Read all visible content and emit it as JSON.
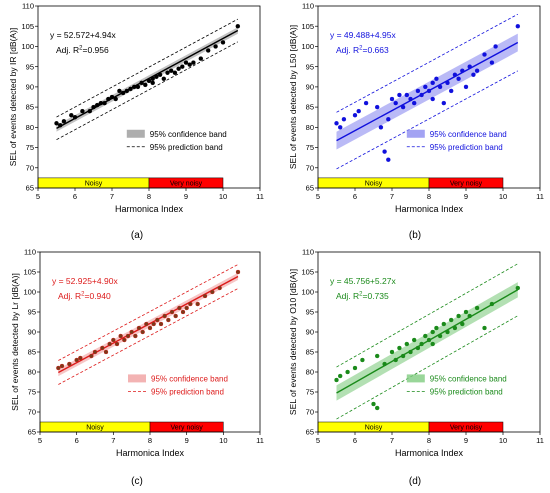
{
  "chart_data": [
    {
      "type": "scatter",
      "panel_label": "(a)",
      "xlabel": "Harmonica Index",
      "ylabel": "SEL of events detected by IR [dB(A)]",
      "xlim": [
        5,
        11
      ],
      "ylim": [
        65,
        110
      ],
      "xticks": [
        5,
        6,
        7,
        8,
        9,
        10,
        11
      ],
      "yticks": [
        65,
        70,
        75,
        80,
        85,
        90,
        95,
        100,
        105,
        110
      ],
      "color": "#000000",
      "band_color": "#9a9a9a",
      "equation": "y = 52.572+4.94x",
      "r2_label": "Adj. R",
      "r2_sup": "2",
      "r2_value": "=0.956",
      "fit": {
        "intercept": 52.572,
        "slope": 4.94,
        "x_range": [
          5.5,
          10.4
        ]
      },
      "conf_halfwidth": 0.8,
      "pred_halfwidth": 2.8,
      "legend": {
        "position": "bottom-right",
        "confidence": "95% confidence band",
        "prediction": "95% prediction band"
      },
      "zones": [
        {
          "label": "Noisy",
          "from": 5,
          "to": 8,
          "color": "#ffff00"
        },
        {
          "label": "Very noisy",
          "from": 8,
          "to": 10,
          "color": "#ff0000"
        }
      ],
      "points": [
        [
          5.5,
          81
        ],
        [
          5.6,
          80.5
        ],
        [
          5.7,
          81.5
        ],
        [
          5.9,
          83
        ],
        [
          6.0,
          82.5
        ],
        [
          6.2,
          84
        ],
        [
          6.4,
          84
        ],
        [
          6.5,
          85
        ],
        [
          6.6,
          85.5
        ],
        [
          6.7,
          86
        ],
        [
          6.8,
          86
        ],
        [
          6.9,
          87
        ],
        [
          7.0,
          87.5
        ],
        [
          7.1,
          87
        ],
        [
          7.2,
          89
        ],
        [
          7.3,
          88.5
        ],
        [
          7.4,
          89
        ],
        [
          7.5,
          89.5
        ],
        [
          7.6,
          90
        ],
        [
          7.7,
          90
        ],
        [
          7.8,
          91
        ],
        [
          7.9,
          90.5
        ],
        [
          8.0,
          91.5
        ],
        [
          8.1,
          92
        ],
        [
          8.1,
          91
        ],
        [
          8.2,
          92.5
        ],
        [
          8.3,
          93
        ],
        [
          8.4,
          92
        ],
        [
          8.5,
          93.5
        ],
        [
          8.6,
          94
        ],
        [
          8.7,
          93.5
        ],
        [
          8.8,
          94.5
        ],
        [
          8.9,
          95
        ],
        [
          9.0,
          96
        ],
        [
          9.1,
          95.5
        ],
        [
          9.2,
          96
        ],
        [
          9.4,
          97
        ],
        [
          9.6,
          99
        ],
        [
          9.8,
          100
        ],
        [
          10.0,
          101
        ],
        [
          10.4,
          105
        ]
      ]
    },
    {
      "type": "scatter",
      "panel_label": "(b)",
      "xlabel": "Harmonica Index",
      "ylabel": "SEL of events detected by L50 [dB(A)]",
      "xlim": [
        5,
        11
      ],
      "ylim": [
        65,
        110
      ],
      "xticks": [
        5,
        6,
        7,
        8,
        9,
        10,
        11
      ],
      "yticks": [
        65,
        70,
        75,
        80,
        85,
        90,
        95,
        100,
        105,
        110
      ],
      "color": "#1010dd",
      "band_color": "#8c8cf0",
      "equation": "y = 49.488+4.95x",
      "r2_label": "Adj. R",
      "r2_sup": "2",
      "r2_value": "=0.663",
      "fit": {
        "intercept": 49.488,
        "slope": 4.95,
        "x_range": [
          5.5,
          10.4
        ]
      },
      "conf_halfwidth": 2.2,
      "pred_halfwidth": 7.0,
      "legend": {
        "position": "bottom-right",
        "confidence": "95% confidence band",
        "prediction": "95% prediction band"
      },
      "zones": [
        {
          "label": "Noisy",
          "from": 5,
          "to": 8,
          "color": "#ffff00"
        },
        {
          "label": "Very noisy",
          "from": 8,
          "to": 10,
          "color": "#ff0000"
        }
      ],
      "points": [
        [
          5.5,
          81
        ],
        [
          5.6,
          80
        ],
        [
          5.7,
          82
        ],
        [
          6.0,
          83
        ],
        [
          6.1,
          84
        ],
        [
          6.3,
          86
        ],
        [
          6.6,
          85
        ],
        [
          6.7,
          80
        ],
        [
          6.8,
          74
        ],
        [
          6.9,
          72
        ],
        [
          6.9,
          82
        ],
        [
          7.0,
          87
        ],
        [
          7.1,
          86
        ],
        [
          7.2,
          88
        ],
        [
          7.3,
          85
        ],
        [
          7.4,
          88
        ],
        [
          7.5,
          87
        ],
        [
          7.6,
          86
        ],
        [
          7.7,
          89
        ],
        [
          7.8,
          88
        ],
        [
          7.9,
          90
        ],
        [
          8.0,
          89
        ],
        [
          8.1,
          87
        ],
        [
          8.1,
          91
        ],
        [
          8.2,
          92
        ],
        [
          8.3,
          90
        ],
        [
          8.4,
          86
        ],
        [
          8.5,
          91
        ],
        [
          8.6,
          89
        ],
        [
          8.7,
          93
        ],
        [
          8.8,
          92
        ],
        [
          8.9,
          94
        ],
        [
          9.0,
          90
        ],
        [
          9.1,
          95
        ],
        [
          9.2,
          93
        ],
        [
          9.3,
          94
        ],
        [
          9.5,
          98
        ],
        [
          9.7,
          96
        ],
        [
          9.8,
          100
        ],
        [
          10.4,
          105
        ]
      ]
    },
    {
      "type": "scatter",
      "panel_label": "(c)",
      "xlabel": "Harmonica Index",
      "ylabel": "SEL of events detected by Lr [dB(A)]",
      "xlim": [
        5,
        11
      ],
      "ylim": [
        65,
        110
      ],
      "xticks": [
        5,
        6,
        7,
        8,
        9,
        10,
        11
      ],
      "yticks": [
        65,
        70,
        75,
        80,
        85,
        90,
        95,
        100,
        105,
        110
      ],
      "color": "#dd1a1a",
      "band_color": "#f0a0a0",
      "dot_fill": "#7a3a1a",
      "equation": "y = 52.925+4.90x",
      "r2_label": "Adj. R",
      "r2_sup": "2",
      "r2_value": "=0.940",
      "fit": {
        "intercept": 52.925,
        "slope": 4.9,
        "x_range": [
          5.5,
          10.4
        ]
      },
      "conf_halfwidth": 0.9,
      "pred_halfwidth": 3.0,
      "legend": {
        "position": "bottom-right",
        "confidence": "95% confidence band",
        "prediction": "95% prediction band"
      },
      "zones": [
        {
          "label": "Noisy",
          "from": 5,
          "to": 8,
          "color": "#ffff00"
        },
        {
          "label": "Very noisy",
          "from": 8,
          "to": 10,
          "color": "#ff0000"
        }
      ],
      "points": [
        [
          5.5,
          81
        ],
        [
          5.6,
          81.5
        ],
        [
          5.8,
          82
        ],
        [
          6.0,
          83
        ],
        [
          6.1,
          83.5
        ],
        [
          6.4,
          84
        ],
        [
          6.5,
          85
        ],
        [
          6.7,
          86
        ],
        [
          6.8,
          85
        ],
        [
          6.9,
          87
        ],
        [
          7.0,
          88
        ],
        [
          7.1,
          87
        ],
        [
          7.2,
          89
        ],
        [
          7.3,
          88
        ],
        [
          7.4,
          89
        ],
        [
          7.5,
          90
        ],
        [
          7.6,
          89
        ],
        [
          7.7,
          91
        ],
        [
          7.8,
          90
        ],
        [
          7.9,
          92
        ],
        [
          8.0,
          91
        ],
        [
          8.1,
          92
        ],
        [
          8.2,
          93
        ],
        [
          8.3,
          92
        ],
        [
          8.4,
          94
        ],
        [
          8.5,
          93
        ],
        [
          8.6,
          95
        ],
        [
          8.7,
          94
        ],
        [
          8.8,
          96
        ],
        [
          8.9,
          95
        ],
        [
          9.0,
          96
        ],
        [
          9.1,
          97
        ],
        [
          9.3,
          97
        ],
        [
          9.5,
          99
        ],
        [
          9.7,
          100
        ],
        [
          9.9,
          101
        ],
        [
          10.4,
          105
        ]
      ]
    },
    {
      "type": "scatter",
      "panel_label": "(d)",
      "xlabel": "Harmonica Index",
      "ylabel": "SEL of events detected by O10 [dB(A)]",
      "xlim": [
        5,
        11
      ],
      "ylim": [
        65,
        110
      ],
      "xticks": [
        5,
        6,
        7,
        8,
        9,
        10,
        11
      ],
      "yticks": [
        65,
        70,
        75,
        80,
        85,
        90,
        95,
        100,
        105,
        110
      ],
      "color": "#1a8a1a",
      "band_color": "#80cc80",
      "equation": "y = 45.756+5.27x",
      "r2_label": "Adj. R",
      "r2_sup": "2",
      "r2_value": "=0.735",
      "fit": {
        "intercept": 45.756,
        "slope": 5.27,
        "x_range": [
          5.5,
          10.4
        ]
      },
      "conf_halfwidth": 1.9,
      "pred_halfwidth": 6.5,
      "legend": {
        "position": "bottom-right",
        "confidence": "95% confidence band",
        "prediction": "95% prediction band"
      },
      "zones": [
        {
          "label": "Noisy",
          "from": 5,
          "to": 8,
          "color": "#ffff00"
        },
        {
          "label": "Very noisy",
          "from": 8,
          "to": 10,
          "color": "#ff0000"
        }
      ],
      "points": [
        [
          5.5,
          78
        ],
        [
          5.6,
          79
        ],
        [
          5.8,
          80
        ],
        [
          6.0,
          81
        ],
        [
          6.2,
          83
        ],
        [
          6.5,
          72
        ],
        [
          6.6,
          71
        ],
        [
          6.6,
          84
        ],
        [
          6.8,
          82
        ],
        [
          7.0,
          85
        ],
        [
          7.1,
          83
        ],
        [
          7.2,
          86
        ],
        [
          7.3,
          84
        ],
        [
          7.4,
          87
        ],
        [
          7.5,
          85
        ],
        [
          7.6,
          88
        ],
        [
          7.7,
          86
        ],
        [
          7.8,
          87
        ],
        [
          7.9,
          89
        ],
        [
          8.0,
          88
        ],
        [
          8.1,
          90
        ],
        [
          8.1,
          87
        ],
        [
          8.2,
          91
        ],
        [
          8.3,
          89
        ],
        [
          8.4,
          92
        ],
        [
          8.5,
          90
        ],
        [
          8.6,
          93
        ],
        [
          8.7,
          91
        ],
        [
          8.8,
          94
        ],
        [
          8.9,
          92
        ],
        [
          9.0,
          95
        ],
        [
          9.1,
          94
        ],
        [
          9.3,
          96
        ],
        [
          9.5,
          91
        ],
        [
          9.7,
          97
        ],
        [
          10.4,
          101
        ]
      ]
    }
  ]
}
